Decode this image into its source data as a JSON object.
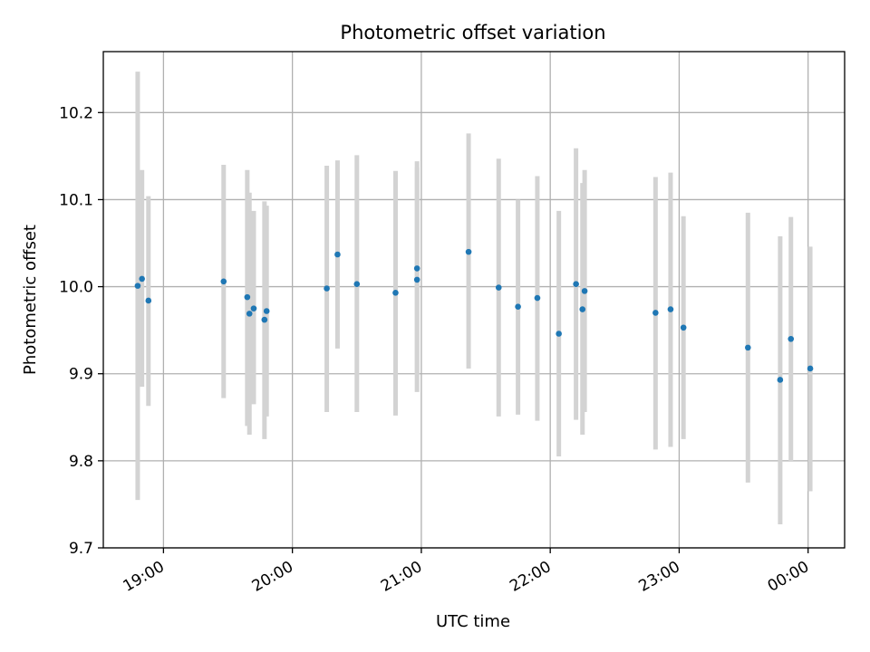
{
  "chart_data": {
    "type": "scatter",
    "title": "Photometric offset variation",
    "xlabel": "UTC time",
    "ylabel": "Photometric offset",
    "x_axis": "time",
    "xlim": [
      "2000-01-01T18:32",
      "2000-01-02T00:17"
    ],
    "ylim": [
      9.7,
      10.27
    ],
    "grid": true,
    "x_ticks": [
      "2000-01-01T19:00",
      "2000-01-01T20:00",
      "2000-01-01T21:00",
      "2000-01-01T22:00",
      "2000-01-01T23:00",
      "2000-01-02T00:00"
    ],
    "x_tick_labels": [
      "19:00",
      "20:00",
      "21:00",
      "22:00",
      "23:00",
      "00:00"
    ],
    "y_ticks": [
      9.7,
      9.8,
      9.9,
      10.0,
      10.1,
      10.2
    ],
    "y_tick_labels": [
      "9.7",
      "9.8",
      "9.9",
      "10.0",
      "10.1",
      "10.2"
    ],
    "marker_color": "#1f77b4",
    "errorbar_color": "#d3d3d3",
    "points": [
      {
        "x": "2000-01-01T18:48",
        "y": 10.001,
        "ylow": 9.755,
        "yhigh": 10.247
      },
      {
        "x": "2000-01-01T18:50",
        "y": 10.009,
        "ylow": 9.885,
        "yhigh": 10.134
      },
      {
        "x": "2000-01-01T18:53",
        "y": 9.984,
        "ylow": 9.863,
        "yhigh": 10.104
      },
      {
        "x": "2000-01-01T19:28",
        "y": 10.006,
        "ylow": 9.872,
        "yhigh": 10.14
      },
      {
        "x": "2000-01-01T19:39",
        "y": 9.988,
        "ylow": 9.84,
        "yhigh": 10.134
      },
      {
        "x": "2000-01-01T19:40",
        "y": 9.969,
        "ylow": 9.83,
        "yhigh": 10.108
      },
      {
        "x": "2000-01-01T19:42",
        "y": 9.975,
        "ylow": 9.865,
        "yhigh": 10.087
      },
      {
        "x": "2000-01-01T19:47",
        "y": 9.962,
        "ylow": 9.825,
        "yhigh": 10.098
      },
      {
        "x": "2000-01-01T19:48",
        "y": 9.972,
        "ylow": 9.851,
        "yhigh": 10.093
      },
      {
        "x": "2000-01-01T20:16",
        "y": 9.998,
        "ylow": 9.856,
        "yhigh": 10.139
      },
      {
        "x": "2000-01-01T20:21",
        "y": 10.037,
        "ylow": 9.929,
        "yhigh": 10.145
      },
      {
        "x": "2000-01-01T20:30",
        "y": 10.003,
        "ylow": 9.856,
        "yhigh": 10.151
      },
      {
        "x": "2000-01-01T20:48",
        "y": 9.993,
        "ylow": 9.852,
        "yhigh": 10.133
      },
      {
        "x": "2000-01-01T20:58",
        "y": 10.008,
        "ylow": 9.879,
        "yhigh": 10.137
      },
      {
        "x": "2000-01-01T20:58",
        "y": 10.021,
        "ylow": 9.9,
        "yhigh": 10.144
      },
      {
        "x": "2000-01-01T21:22",
        "y": 10.04,
        "ylow": 9.906,
        "yhigh": 10.176
      },
      {
        "x": "2000-01-01T21:36",
        "y": 9.999,
        "ylow": 9.851,
        "yhigh": 10.147
      },
      {
        "x": "2000-01-01T21:45",
        "y": 9.977,
        "ylow": 9.853,
        "yhigh": 10.1
      },
      {
        "x": "2000-01-01T21:54",
        "y": 9.987,
        "ylow": 9.846,
        "yhigh": 10.127
      },
      {
        "x": "2000-01-01T22:04",
        "y": 9.946,
        "ylow": 9.805,
        "yhigh": 10.087
      },
      {
        "x": "2000-01-01T22:12",
        "y": 10.003,
        "ylow": 9.847,
        "yhigh": 10.159
      },
      {
        "x": "2000-01-01T22:15",
        "y": 9.974,
        "ylow": 9.83,
        "yhigh": 10.119
      },
      {
        "x": "2000-01-01T22:16",
        "y": 9.995,
        "ylow": 9.856,
        "yhigh": 10.134
      },
      {
        "x": "2000-01-01T22:49",
        "y": 9.97,
        "ylow": 9.813,
        "yhigh": 10.126
      },
      {
        "x": "2000-01-01T22:56",
        "y": 9.974,
        "ylow": 9.816,
        "yhigh": 10.131
      },
      {
        "x": "2000-01-01T23:02",
        "y": 9.953,
        "ylow": 9.825,
        "yhigh": 10.081
      },
      {
        "x": "2000-01-01T23:32",
        "y": 9.93,
        "ylow": 9.775,
        "yhigh": 10.085
      },
      {
        "x": "2000-01-01T23:47",
        "y": 9.893,
        "ylow": 9.727,
        "yhigh": 10.058
      },
      {
        "x": "2000-01-01T23:52",
        "y": 9.94,
        "ylow": 9.799,
        "yhigh": 10.08
      },
      {
        "x": "2000-01-02T00:01",
        "y": 9.906,
        "ylow": 9.765,
        "yhigh": 10.046
      }
    ]
  }
}
